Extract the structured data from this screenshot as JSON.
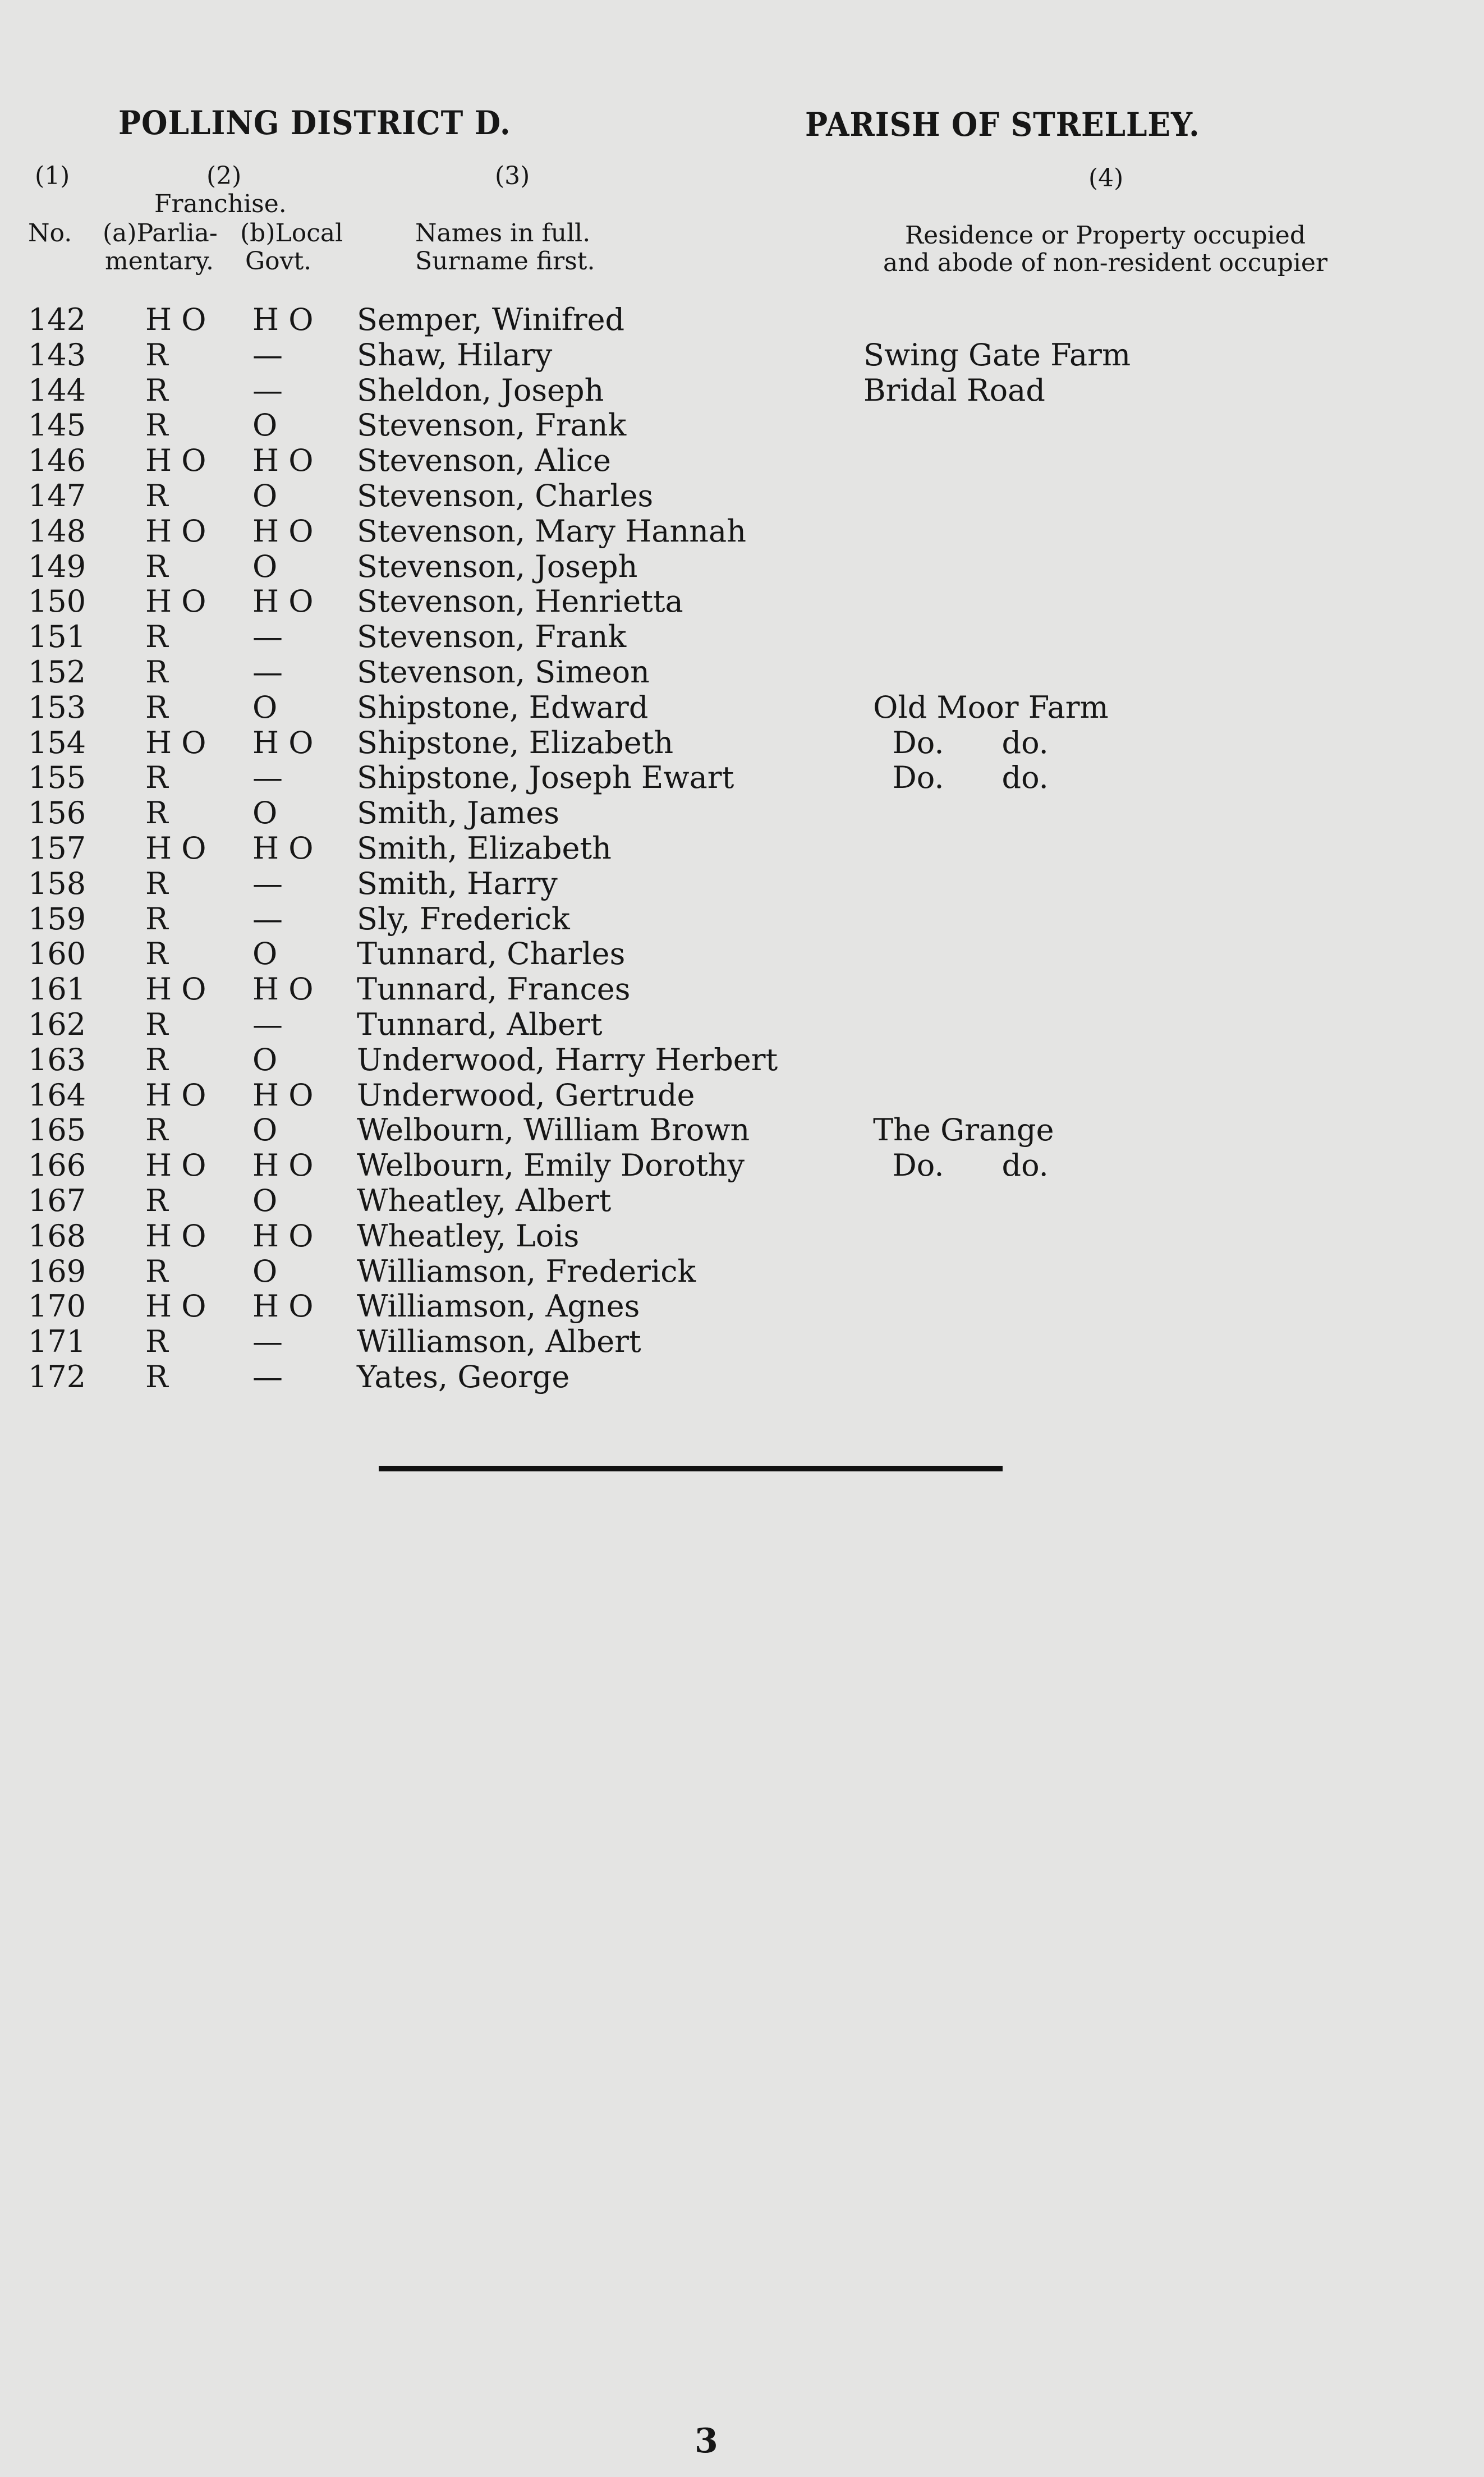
{
  "header": {
    "district_title": "POLLING DISTRICT D.",
    "parish_title": "PARISH OF STRELLEY.",
    "col1_num": "(1)",
    "col2_num": "(2)",
    "col3_num": "(3)",
    "col4_num": "(4)",
    "franchise": "Franchise.",
    "no": "No.",
    "parl_a": "(a)Parlia-",
    "parl_b": "mentary.",
    "local_a": "(b)Local",
    "local_b": "Govt.",
    "names_a": "Names in full.",
    "names_b": "Surname first.",
    "res_a": "Residence or Property occupied",
    "res_b": "and abode of non-resident occupier"
  },
  "rows": [
    {
      "no": "142",
      "parl": "H O",
      "local": "H O",
      "name": "Semper, Winifred",
      "res": ""
    },
    {
      "no": "143",
      "parl": "R",
      "local": "—",
      "name": "Shaw, Hilary",
      "res": "Swing Gate Farm"
    },
    {
      "no": "144",
      "parl": "R",
      "local": "—",
      "name": "Sheldon, Joseph",
      "res": "Bridal Road"
    },
    {
      "no": "145",
      "parl": "R",
      "local": "O",
      "name": "Stevenson, Frank",
      "res": ""
    },
    {
      "no": "146",
      "parl": "H O",
      "local": "H O",
      "name": "Stevenson, Alice",
      "res": ""
    },
    {
      "no": "147",
      "parl": "R",
      "local": "O",
      "name": "Stevenson, Charles",
      "res": ""
    },
    {
      "no": "148",
      "parl": "H O",
      "local": "H O",
      "name": "Stevenson, Mary Hannah",
      "res": ""
    },
    {
      "no": "149",
      "parl": "R",
      "local": "O",
      "name": "Stevenson, Joseph",
      "res": ""
    },
    {
      "no": "150",
      "parl": "H O",
      "local": "H O",
      "name": "Stevenson, Henrietta",
      "res": ""
    },
    {
      "no": "151",
      "parl": "R",
      "local": "—",
      "name": "Stevenson, Frank",
      "res": ""
    },
    {
      "no": "152",
      "parl": "R",
      "local": "—",
      "name": "Stevenson, Simeon",
      "res": ""
    },
    {
      "no": "153",
      "parl": "R",
      "local": "O",
      "name": "Shipstone, Edward",
      "res": " Old Moor Farm"
    },
    {
      "no": "154",
      "parl": "H O",
      "local": "H O",
      "name": "Shipstone, Elizabeth",
      "res": "   Do.      do."
    },
    {
      "no": "155",
      "parl": "R",
      "local": "—",
      "name": "Shipstone, Joseph Ewart",
      "res": "   Do.      do."
    },
    {
      "no": "156",
      "parl": "R",
      "local": "O",
      "name": "Smith, James",
      "res": ""
    },
    {
      "no": "157",
      "parl": "H O",
      "local": "H O",
      "name": "Smith, Elizabeth",
      "res": ""
    },
    {
      "no": "158",
      "parl": "R",
      "local": "—",
      "name": "Smith, Harry",
      "res": ""
    },
    {
      "no": "159",
      "parl": "R",
      "local": "—",
      "name": "Sly, Frederick",
      "res": ""
    },
    {
      "no": "160",
      "parl": "R",
      "local": "O",
      "name": "Tunnard, Charles",
      "res": ""
    },
    {
      "no": "161",
      "parl": "H O",
      "local": "H O",
      "name": "Tunnard, Frances",
      "res": ""
    },
    {
      "no": "162",
      "parl": "R",
      "local": "—",
      "name": "Tunnard, Albert",
      "res": ""
    },
    {
      "no": "163",
      "parl": "R",
      "local": "O",
      "name": "Underwood, Harry Herbert",
      "res": ""
    },
    {
      "no": "164",
      "parl": "H O",
      "local": "H O",
      "name": "Underwood, Gertrude",
      "res": ""
    },
    {
      "no": "165",
      "parl": "R",
      "local": "O",
      "name": "Welbourn, William Brown",
      "res": " The Grange"
    },
    {
      "no": "166",
      "parl": "H O",
      "local": "H O",
      "name": "Welbourn, Emily Dorothy",
      "res": "   Do.      do."
    },
    {
      "no": "167",
      "parl": "R",
      "local": "O",
      "name": "Wheatley, Albert",
      "res": ""
    },
    {
      "no": "168",
      "parl": "H O",
      "local": "H O",
      "name": "Wheatley, Lois",
      "res": ""
    },
    {
      "no": "169",
      "parl": "R",
      "local": "O",
      "name": "Williamson, Frederick",
      "res": ""
    },
    {
      "no": "170",
      "parl": "H O",
      "local": "H O",
      "name": "Williamson, Agnes",
      "res": ""
    },
    {
      "no": "171",
      "parl": "R",
      "local": "—",
      "name": "Williamson, Albert",
      "res": ""
    },
    {
      "no": "172",
      "parl": "R",
      "local": "—",
      "name": "Yates, George",
      "res": ""
    }
  ],
  "page_number": "3"
}
